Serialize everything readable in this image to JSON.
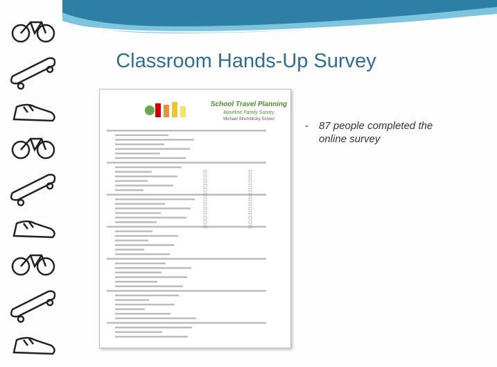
{
  "slide": {
    "title": "Classroom Hands-Up Survey",
    "bullets": [
      "87 people completed the online survey"
    ]
  },
  "survey_image": {
    "heading": "School Travel Planning",
    "subheading": "Baseline Family Survey",
    "school": "Michael Strembitsky School"
  }
}
